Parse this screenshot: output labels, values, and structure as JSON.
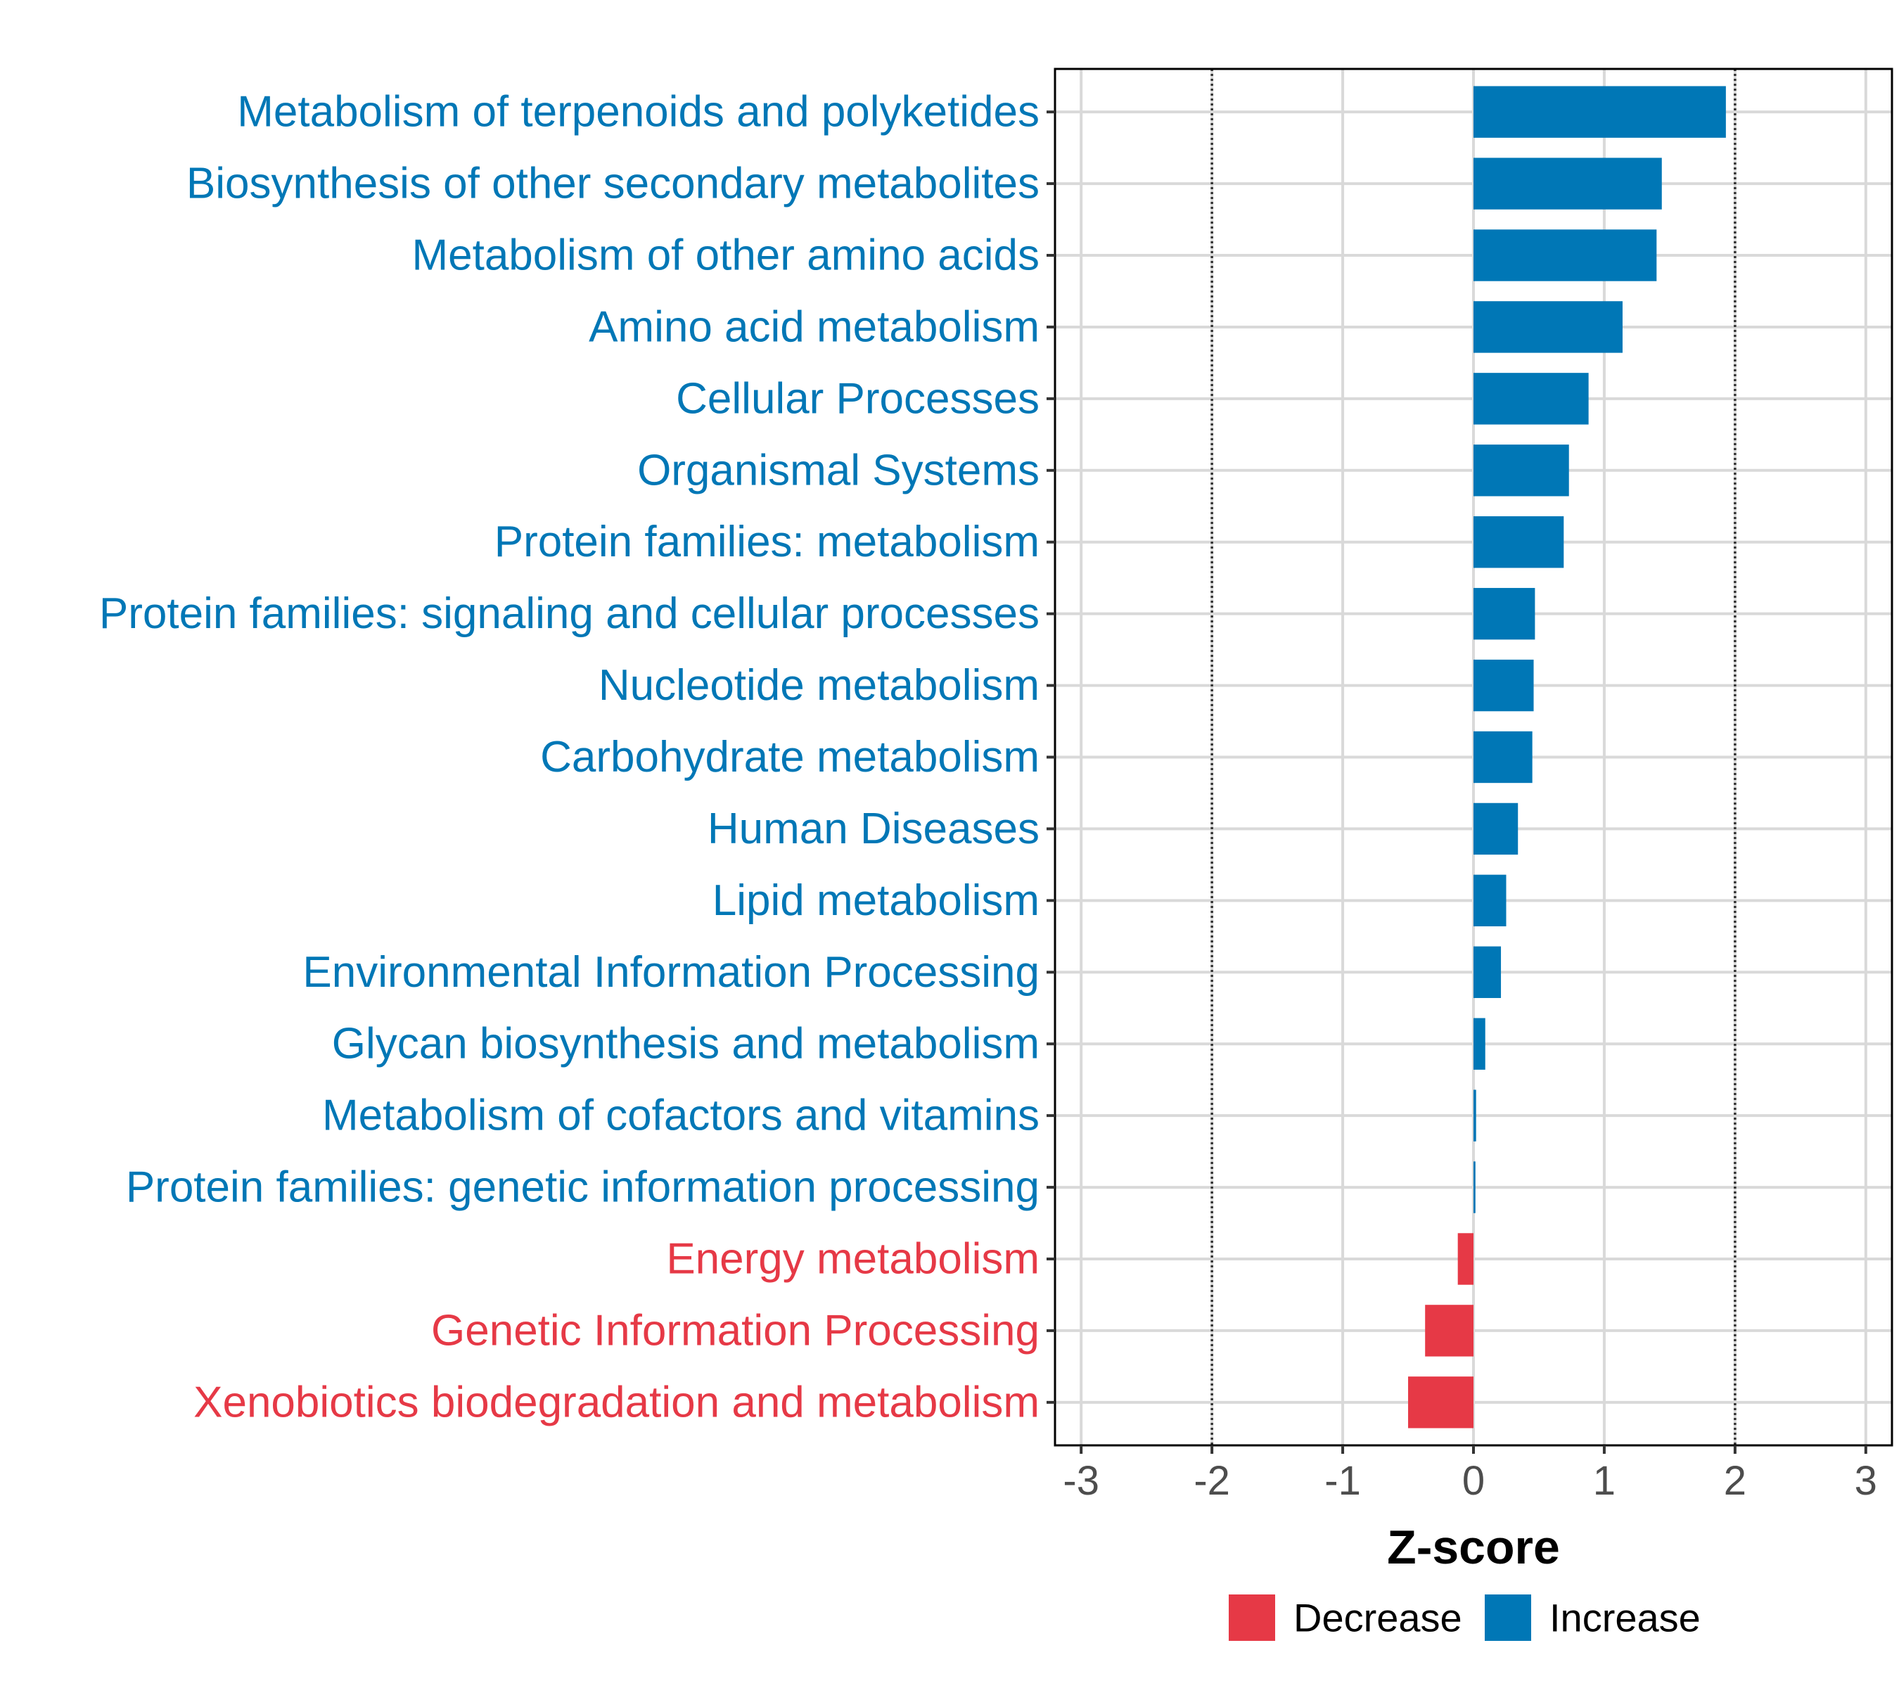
{
  "chart_data": {
    "type": "bar",
    "orientation": "horizontal",
    "xlabel": "Z-score",
    "xlim": [
      -3.2,
      3.2
    ],
    "xticks": [
      -3,
      -2,
      -1,
      0,
      1,
      2,
      3
    ],
    "xtick_labels": [
      "-3",
      "-2",
      "-1",
      "0",
      "1",
      "2",
      "3"
    ],
    "reference_lines": [
      -2,
      2
    ],
    "grid": true,
    "legend": {
      "position": "bottom",
      "items": [
        {
          "label": "Decrease",
          "color": "#E63946"
        },
        {
          "label": "Increase",
          "color": "#0077B6"
        }
      ]
    },
    "colors": {
      "Decrease": "#E63946",
      "Increase": "#0077B6"
    },
    "categories": [
      "Metabolism of terpenoids and polyketides",
      "Biosynthesis of other secondary metabolites",
      "Metabolism of other amino acids",
      "Amino acid metabolism",
      "Cellular Processes",
      "Organismal Systems",
      "Protein families: metabolism",
      "Protein families: signaling and cellular processes",
      "Nucleotide metabolism",
      "Carbohydrate metabolism",
      "Human Diseases",
      "Lipid metabolism",
      "Environmental Information Processing",
      "Glycan biosynthesis and metabolism",
      "Metabolism of cofactors and vitamins",
      "Protein families: genetic information processing",
      "Energy metabolism",
      "Genetic Information Processing",
      "Xenobiotics biodegradation and metabolism"
    ],
    "values": [
      1.93,
      1.44,
      1.4,
      1.14,
      0.88,
      0.73,
      0.69,
      0.47,
      0.46,
      0.45,
      0.34,
      0.25,
      0.21,
      0.09,
      0.02,
      0.015,
      -0.12,
      -0.37,
      -0.5
    ],
    "groups": [
      "Increase",
      "Increase",
      "Increase",
      "Increase",
      "Increase",
      "Increase",
      "Increase",
      "Increase",
      "Increase",
      "Increase",
      "Increase",
      "Increase",
      "Increase",
      "Increase",
      "Increase",
      "Increase",
      "Decrease",
      "Decrease",
      "Decrease"
    ]
  }
}
